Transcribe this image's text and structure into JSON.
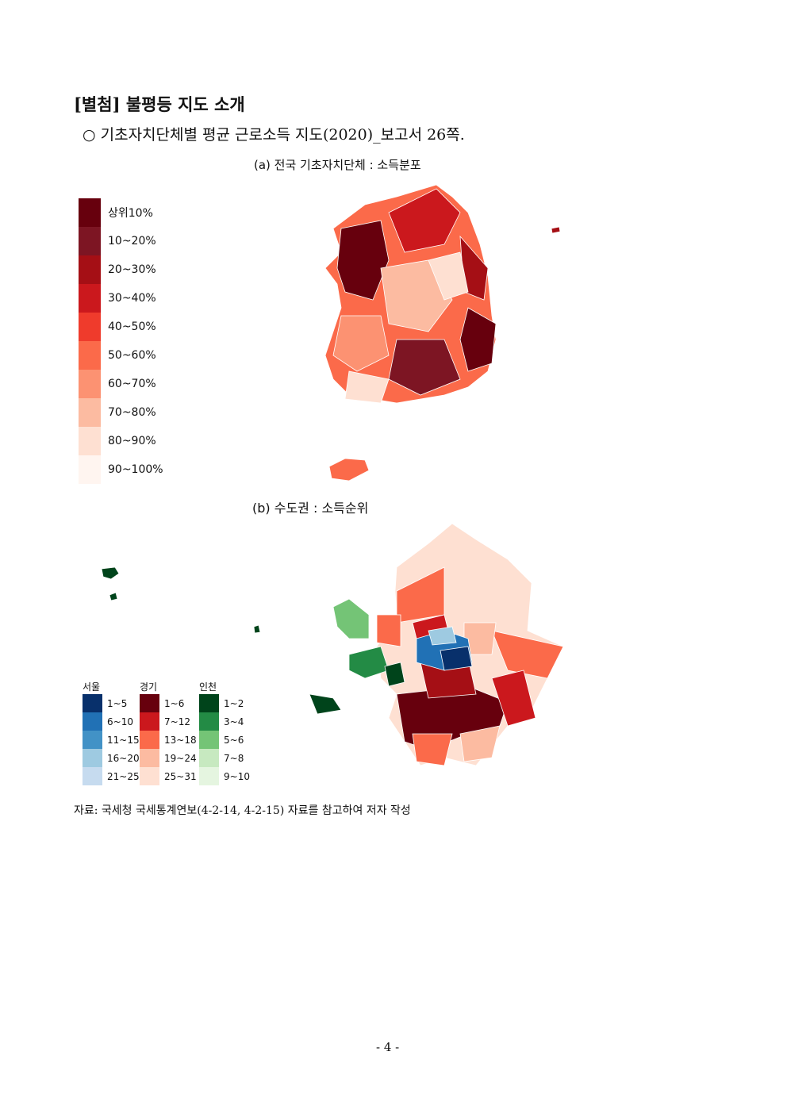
{
  "heading": "[별첨] 불평등 지도 소개",
  "bullet": "○ 기초자치단체별 평균 근로소득 지도(2020)_보고서 26쪽.",
  "figure_a": {
    "caption": "(a) 전국 기초자치단체 : 소득분포",
    "legend": [
      {
        "label": "상위10%",
        "color": "#67000d"
      },
      {
        "label": "10~20%",
        "color": "#7d1523"
      },
      {
        "label": "20~30%",
        "color": "#a50f15"
      },
      {
        "label": "30~40%",
        "color": "#cb181d"
      },
      {
        "label": "40~50%",
        "color": "#ef3b2c"
      },
      {
        "label": "50~60%",
        "color": "#fb6a4a"
      },
      {
        "label": "60~70%",
        "color": "#fc9272"
      },
      {
        "label": "70~80%",
        "color": "#fcbba1"
      },
      {
        "label": "80~90%",
        "color": "#fee0d2"
      },
      {
        "label": "90~100%",
        "color": "#fff5f0"
      }
    ]
  },
  "figure_b": {
    "caption": "(b) 수도권 : 소득순위",
    "legends": [
      {
        "title": "서울",
        "items": [
          {
            "label": "1~5",
            "color": "#08306b"
          },
          {
            "label": "6~10",
            "color": "#2171b5"
          },
          {
            "label": "11~15",
            "color": "#4292c6"
          },
          {
            "label": "16~20",
            "color": "#9ecae1"
          },
          {
            "label": "21~25",
            "color": "#c6dbef"
          }
        ]
      },
      {
        "title": "경기",
        "items": [
          {
            "label": "1~6",
            "color": "#67000d"
          },
          {
            "label": "7~12",
            "color": "#cb181d"
          },
          {
            "label": "13~18",
            "color": "#fb6a4a"
          },
          {
            "label": "19~24",
            "color": "#fcbba1"
          },
          {
            "label": "25~31",
            "color": "#fee0d2"
          }
        ]
      },
      {
        "title": "인천",
        "items": [
          {
            "label": "1~2",
            "color": "#00441b"
          },
          {
            "label": "3~4",
            "color": "#238b45"
          },
          {
            "label": "5~6",
            "color": "#74c476"
          },
          {
            "label": "7~8",
            "color": "#c7e9c0"
          },
          {
            "label": "9~10",
            "color": "#e5f5e0"
          }
        ]
      }
    ]
  },
  "source": "자료: 국세청 국세통계연보(4-2-14, 4-2-15) 자료를 참고하여 저자 작성",
  "page_number": "- 4 -"
}
